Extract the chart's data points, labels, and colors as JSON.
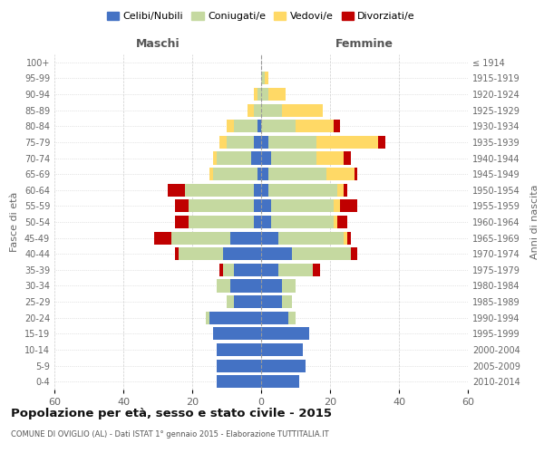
{
  "age_groups": [
    "0-4",
    "5-9",
    "10-14",
    "15-19",
    "20-24",
    "25-29",
    "30-34",
    "35-39",
    "40-44",
    "45-49",
    "50-54",
    "55-59",
    "60-64",
    "65-69",
    "70-74",
    "75-79",
    "80-84",
    "85-89",
    "90-94",
    "95-99",
    "100+"
  ],
  "birth_years": [
    "2010-2014",
    "2005-2009",
    "2000-2004",
    "1995-1999",
    "1990-1994",
    "1985-1989",
    "1980-1984",
    "1975-1979",
    "1970-1974",
    "1965-1969",
    "1960-1964",
    "1955-1959",
    "1950-1954",
    "1945-1949",
    "1940-1944",
    "1935-1939",
    "1930-1934",
    "1925-1929",
    "1920-1924",
    "1915-1919",
    "≤ 1914"
  ],
  "males": {
    "celibi": [
      13,
      13,
      13,
      14,
      15,
      8,
      9,
      8,
      11,
      9,
      2,
      2,
      2,
      1,
      3,
      2,
      1,
      0,
      0,
      0,
      0
    ],
    "coniugati": [
      0,
      0,
      0,
      0,
      1,
      2,
      4,
      3,
      13,
      17,
      19,
      19,
      20,
      13,
      10,
      8,
      7,
      2,
      1,
      0,
      0
    ],
    "vedovi": [
      0,
      0,
      0,
      0,
      0,
      0,
      0,
      0,
      0,
      0,
      0,
      0,
      0,
      1,
      1,
      2,
      2,
      2,
      1,
      0,
      0
    ],
    "divorziati": [
      0,
      0,
      0,
      0,
      0,
      0,
      0,
      1,
      1,
      5,
      4,
      4,
      5,
      0,
      0,
      0,
      0,
      0,
      0,
      0,
      0
    ]
  },
  "females": {
    "nubili": [
      11,
      13,
      12,
      14,
      8,
      6,
      6,
      5,
      9,
      5,
      3,
      3,
      2,
      2,
      3,
      2,
      0,
      0,
      0,
      0,
      0
    ],
    "coniugate": [
      0,
      0,
      0,
      0,
      2,
      3,
      4,
      10,
      17,
      19,
      18,
      18,
      20,
      17,
      13,
      14,
      10,
      6,
      2,
      1,
      0
    ],
    "vedove": [
      0,
      0,
      0,
      0,
      0,
      0,
      0,
      0,
      0,
      1,
      1,
      2,
      2,
      8,
      8,
      18,
      11,
      12,
      5,
      1,
      0
    ],
    "divorziate": [
      0,
      0,
      0,
      0,
      0,
      0,
      0,
      2,
      2,
      1,
      3,
      5,
      1,
      1,
      2,
      2,
      2,
      0,
      0,
      0,
      0
    ]
  },
  "colors": {
    "celibi": "#4472c4",
    "coniugati": "#c5d9a0",
    "vedovi": "#ffd966",
    "divorziati": "#c00000"
  },
  "title": "Popolazione per età, sesso e stato civile - 2015",
  "subtitle": "COMUNE DI OVIGLIO (AL) - Dati ISTAT 1° gennaio 2015 - Elaborazione TUTTITALIA.IT",
  "xlabel_maschi": "Maschi",
  "xlabel_femmine": "Femmine",
  "ylabel_left": "Fasce di età",
  "ylabel_right": "Anni di nascita",
  "xlim": 60,
  "xticks": [
    -60,
    -40,
    -20,
    0,
    20,
    40,
    60
  ],
  "xtick_labels": [
    "60",
    "40",
    "20",
    "0",
    "20",
    "40",
    "60"
  ],
  "legend_labels": [
    "Celibi/Nubili",
    "Coniugati/e",
    "Vedovi/e",
    "Divorziati/e"
  ],
  "background_color": "#ffffff",
  "grid_color": "#cccccc",
  "bar_height": 0.8
}
